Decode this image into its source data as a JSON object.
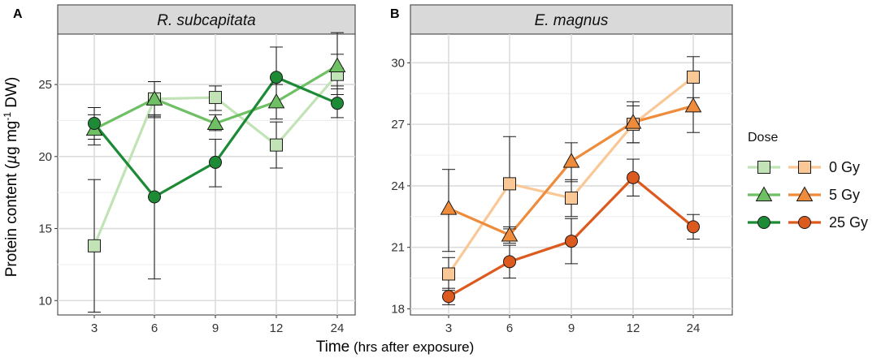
{
  "chart_data": {
    "type": "line",
    "ylabel_prefix": "Protein content (",
    "ylabel_mu": "µ",
    "ylabel_mid": "g mg",
    "ylabel_sup": "-1",
    "ylabel_suffix": " DW)",
    "xlabel_main": "Time",
    "xlabel_sub": " (hrs after exposure)",
    "legend": {
      "title": "Dose",
      "labels": [
        "0 Gy",
        "5 Gy",
        "25 Gy"
      ]
    },
    "panels": [
      {
        "letter": "A",
        "title": "R. subcapitata",
        "categories": [
          "3",
          "6",
          "9",
          "12",
          "24"
        ],
        "ylim": [
          9,
          28.5
        ],
        "yticks": [
          10,
          15,
          20,
          25
        ],
        "yticklabels": [
          "10",
          "15",
          "20",
          "25"
        ],
        "colors": {
          "0 Gy": "#c1e3b6",
          "5 Gy": "#6fbf64",
          "25 Gy": "#1d8a36"
        },
        "series": [
          {
            "name": "0 Gy",
            "marker": "square",
            "values": [
              13.8,
              24.0,
              24.1,
              20.8,
              25.7
            ],
            "err_low": [
              9.2,
              22.8,
              23.2,
              19.2,
              24.3
            ],
            "err_high": [
              18.4,
              25.2,
              24.9,
              22.4,
              27.1
            ]
          },
          {
            "name": "5 Gy",
            "marker": "triangle",
            "values": [
              21.9,
              24.0,
              22.3,
              23.8,
              26.3
            ],
            "err_low": [
              20.8,
              22.7,
              21.8,
              22.6,
              24.9
            ],
            "err_high": [
              22.9,
              25.2,
              22.9,
              25.0,
              28.6
            ]
          },
          {
            "name": "25 Gy",
            "marker": "circle",
            "values": [
              22.3,
              17.2,
              19.6,
              25.5,
              23.7
            ],
            "err_low": [
              21.2,
              11.5,
              17.9,
              23.5,
              22.7
            ],
            "err_high": [
              23.4,
              22.9,
              21.2,
              27.6,
              24.7
            ]
          }
        ]
      },
      {
        "letter": "B",
        "title": "E. magnus",
        "categories": [
          "3",
          "6",
          "9",
          "12",
          "24"
        ],
        "ylim": [
          17.7,
          31.4
        ],
        "yticks": [
          18,
          21,
          24,
          27,
          30
        ],
        "yticklabels": [
          "18",
          "21",
          "24",
          "27",
          "30"
        ],
        "colors": {
          "0 Gy": "#f9c896",
          "5 Gy": "#ef8c3b",
          "25 Gy": "#dd5a1e"
        },
        "series": [
          {
            "name": "0 Gy",
            "marker": "square",
            "values": [
              19.7,
              24.1,
              23.4,
              27.0,
              29.3
            ],
            "err_low": [
              18.9,
              21.9,
              22.5,
              26.1,
              28.3
            ],
            "err_high": [
              20.5,
              26.4,
              24.3,
              27.9,
              30.3
            ]
          },
          {
            "name": "5 Gy",
            "marker": "triangle",
            "values": [
              22.9,
              21.6,
              25.2,
              27.1,
              27.9
            ],
            "err_low": [
              20.8,
              21.2,
              24.2,
              26.1,
              26.6
            ],
            "err_high": [
              24.8,
              22.0,
              26.1,
              28.1,
              29.2
            ]
          },
          {
            "name": "25 Gy",
            "marker": "circle",
            "values": [
              18.6,
              20.3,
              21.3,
              24.4,
              22.0
            ],
            "err_low": [
              18.2,
              19.5,
              20.2,
              23.5,
              21.4
            ],
            "err_high": [
              19.0,
              21.1,
              22.4,
              25.3,
              22.6
            ]
          }
        ]
      }
    ]
  }
}
